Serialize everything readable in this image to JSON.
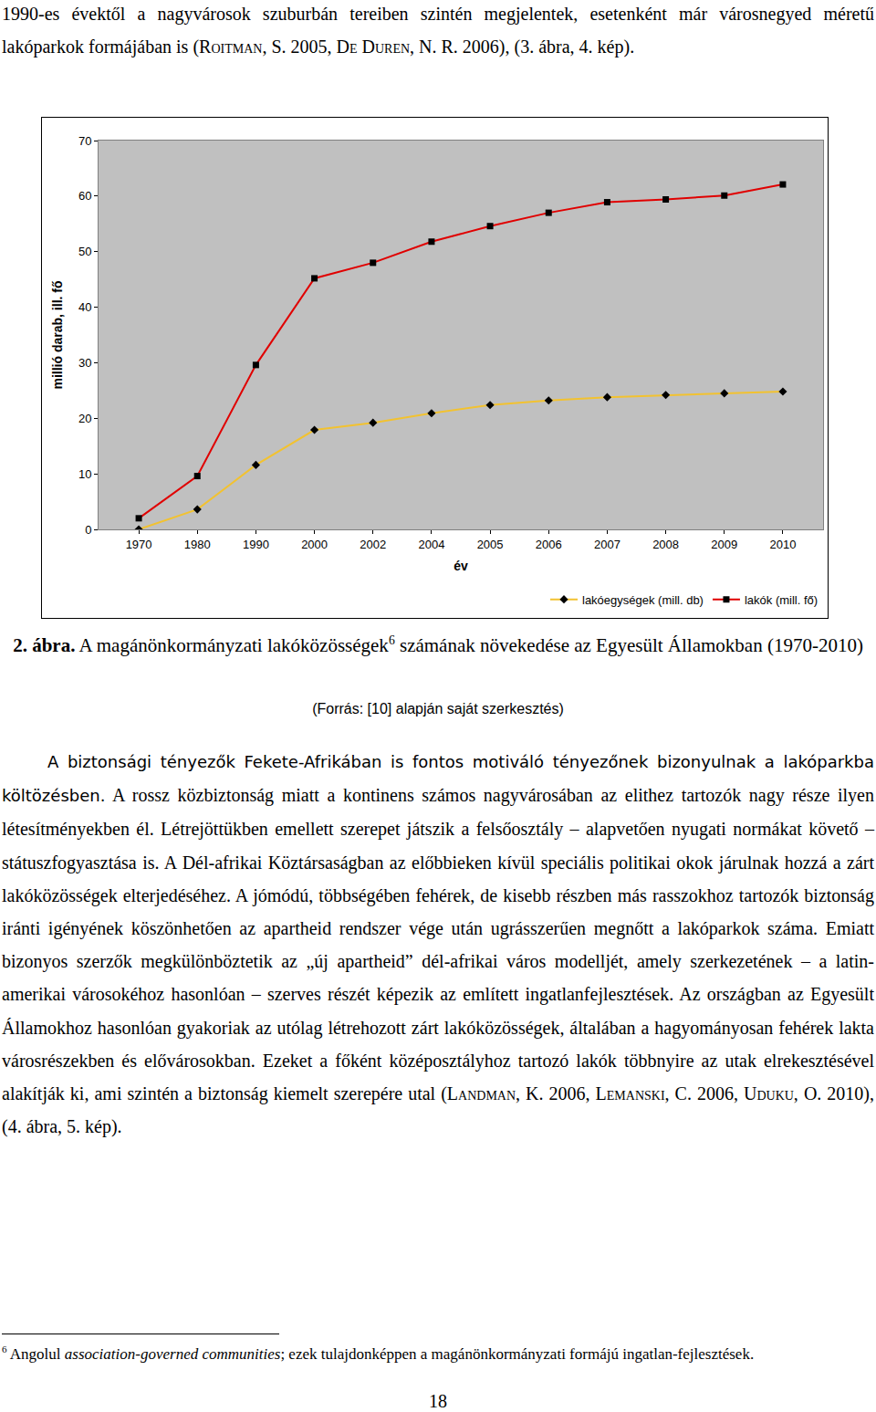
{
  "document": {
    "intro": [
      {
        "text": "1990-es évektől a nagyvárosok szuburbán tereiben szintén megjelentek, esetenként már városnegyed méretű lakóparkok formájában is ("
      },
      {
        "text": "Roitman",
        "style": "smallcaps"
      },
      {
        "text": ", S. 2005, "
      },
      {
        "text": "De Duren",
        "style": "smallcaps"
      },
      {
        "text": ", N. R. 2006), (3. ábra, 4. kép)."
      }
    ],
    "caption": [
      {
        "text": "2. ábra.",
        "style": "bold"
      },
      {
        "text": " A magánönkormányzati lakóközösségek"
      },
      {
        "text": "6",
        "style": "sup"
      },
      {
        "text": " számának növekedése az Egyesült Államokban (1970-2010)"
      }
    ],
    "source": "(Forrás: [10] alapján saját szerkesztés)",
    "body": [
      {
        "text": "A biztonsági tényezők Fekete-Afrikában is fontos motiváló tényezőnek bizonyulnak a lakóparkba költözésben.",
        "style": "sans"
      },
      {
        "text": " A rossz közbiztonság miatt a kontinens számos nagyvárosában az elithez tartozók nagy része ilyen létesítményekben él. Létrejöttükben emellett szerepet játszik a felsőosztály – alapvetően nyugati normákat követő – státuszfogyasztása is. A Dél-afrikai Köztársaságban az előbbieken kívül speciális politikai okok járulnak hozzá a zárt lakóközösségek elterjedéséhez. A jómódú, többségében fehérek, de kisebb részben más rasszokhoz tartozók biztonság iránti igényének köszönhetően az apartheid rendszer vége után ugrásszerűen megnőtt a lakóparkok száma. Emiatt bizonyos szerzők megkülönböztetik az „új apartheid” dél-afrikai város modelljét, amely szerkezetének – a latin-amerikai városokéhoz hasonlóan – szerves részét képezik az említett ingatlanfejlesztések. Az országban az Egyesült Államokhoz hasonlóan gyakoriak az utólag létrehozott zárt lakóközösségek, általában a hagyományosan fehérek lakta városrészekben és elővárosokban. Ezeket a főként középosztályhoz tartozó lakók többnyire az utak elrekesztésével alakítják ki, ami szintén a biztonság kiemelt szerepére utal ("
      },
      {
        "text": "Landman",
        "style": "smallcaps"
      },
      {
        "text": ", K. 2006, "
      },
      {
        "text": "Lemanski",
        "style": "smallcaps"
      },
      {
        "text": ", C. 2006, "
      },
      {
        "text": "Uduku",
        "style": "smallcaps"
      },
      {
        "text": ", O. 2010), (4. ábra, 5. kép)."
      }
    ],
    "footnote": [
      {
        "text": "6",
        "style": "sup"
      },
      {
        "text": " Angolul "
      },
      {
        "text": "association-governed communities",
        "style": "italic"
      },
      {
        "text": "; ezek tulajdonképpen a magánönkormányzati formájú ingatlan-fejlesztések."
      }
    ],
    "page_number": "18"
  },
  "chart_data": {
    "type": "line",
    "xlabel": "év",
    "ylabel": "millió darab, ill. fő",
    "categories": [
      "1970",
      "1980",
      "1990",
      "2000",
      "2002",
      "2004",
      "2005",
      "2006",
      "2007",
      "2008",
      "2009",
      "2010"
    ],
    "series": [
      {
        "name": "lakóegységek (mill. db)",
        "color": "#f2c230",
        "marker": "diamond",
        "values": [
          0,
          3.6,
          11.6,
          17.9,
          19.2,
          20.9,
          22.4,
          23.2,
          23.8,
          24.2,
          24.5,
          24.8
        ]
      },
      {
        "name": "lakók (mill. fő)",
        "color": "#e00000",
        "marker": "square",
        "values": [
          2.0,
          9.6,
          29.6,
          45.2,
          48.0,
          51.8,
          54.6,
          57.0,
          58.9,
          59.4,
          60.1,
          62.1
        ]
      }
    ],
    "ylim": [
      0,
      70
    ],
    "yticks": [
      0,
      10,
      20,
      30,
      40,
      50,
      60,
      70
    ],
    "grid": false,
    "legend": "bottom"
  }
}
